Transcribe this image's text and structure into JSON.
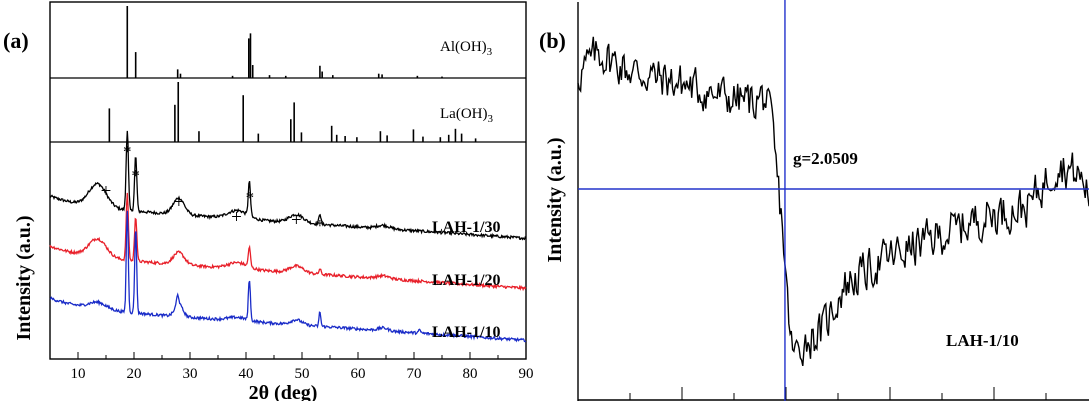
{
  "chart_data": [
    {
      "panel": "(a)",
      "type": "line",
      "xlabel": "2θ (deg)",
      "ylabel": "Intensity (a.u.)",
      "xlim": [
        5,
        90
      ],
      "xticks": [
        10,
        20,
        30,
        40,
        50,
        60,
        70,
        80,
        90
      ],
      "reference_patterns": [
        {
          "name": "Al(OH)",
          "subscript": "3",
          "peaks": [
            {
              "x": 18.8,
              "h": 1.0
            },
            {
              "x": 20.3,
              "h": 0.36
            },
            {
              "x": 27.8,
              "h": 0.12
            },
            {
              "x": 28.3,
              "h": 0.06
            },
            {
              "x": 37.6,
              "h": 0.03
            },
            {
              "x": 40.5,
              "h": 0.55
            },
            {
              "x": 40.8,
              "h": 0.62
            },
            {
              "x": 41.2,
              "h": 0.18
            },
            {
              "x": 44.2,
              "h": 0.04
            },
            {
              "x": 47.1,
              "h": 0.03
            },
            {
              "x": 53.2,
              "h": 0.17
            },
            {
              "x": 53.6,
              "h": 0.09
            },
            {
              "x": 55.5,
              "h": 0.04
            },
            {
              "x": 63.7,
              "h": 0.06
            },
            {
              "x": 64.3,
              "h": 0.05
            },
            {
              "x": 70.6,
              "h": 0.03
            },
            {
              "x": 75.0,
              "h": 0.02
            }
          ]
        },
        {
          "name": "La(OH)",
          "subscript": "3",
          "peaks": [
            {
              "x": 15.6,
              "h": 0.56
            },
            {
              "x": 27.3,
              "h": 0.62
            },
            {
              "x": 27.9,
              "h": 1.0
            },
            {
              "x": 31.6,
              "h": 0.18
            },
            {
              "x": 39.5,
              "h": 0.78
            },
            {
              "x": 42.2,
              "h": 0.14
            },
            {
              "x": 48.0,
              "h": 0.38
            },
            {
              "x": 48.6,
              "h": 0.66
            },
            {
              "x": 49.9,
              "h": 0.16
            },
            {
              "x": 55.3,
              "h": 0.27
            },
            {
              "x": 56.2,
              "h": 0.12
            },
            {
              "x": 57.7,
              "h": 0.1
            },
            {
              "x": 59.8,
              "h": 0.08
            },
            {
              "x": 64.0,
              "h": 0.18
            },
            {
              "x": 65.2,
              "h": 0.11
            },
            {
              "x": 69.9,
              "h": 0.21
            },
            {
              "x": 71.6,
              "h": 0.09
            },
            {
              "x": 74.7,
              "h": 0.08
            },
            {
              "x": 76.2,
              "h": 0.12
            },
            {
              "x": 77.4,
              "h": 0.22
            },
            {
              "x": 78.5,
              "h": 0.14
            },
            {
              "x": 81.0,
              "h": 0.06
            }
          ]
        }
      ],
      "series": [
        {
          "name": "LAH-1/30",
          "color": "#000000",
          "baseline": 0.0,
          "amplitude": 1.0,
          "humps": [
            {
              "x": 13.5,
              "h": 0.42,
              "w": 2.2
            },
            {
              "x": 28.0,
              "h": 0.3,
              "w": 1.4
            },
            {
              "x": 38.5,
              "h": 0.15,
              "w": 2.4
            },
            {
              "x": 49.0,
              "h": 0.15,
              "w": 1.8
            },
            {
              "x": 64.5,
              "h": 0.06,
              "w": 1.6
            }
          ],
          "peaks": [
            {
              "x": 18.8,
              "h": 1.45,
              "w": 0.28
            },
            {
              "x": 20.3,
              "h": 1.0,
              "w": 0.28
            },
            {
              "x": 40.6,
              "h": 0.62,
              "w": 0.28
            },
            {
              "x": 53.2,
              "h": 0.2,
              "w": 0.25
            }
          ]
        },
        {
          "name": "LAH-1/20",
          "color": "#e8202a",
          "baseline": 0.0,
          "amplitude": 1.0,
          "humps": [
            {
              "x": 13.5,
              "h": 0.33,
              "w": 2.2
            },
            {
              "x": 28.0,
              "h": 0.22,
              "w": 1.4
            },
            {
              "x": 38.5,
              "h": 0.11,
              "w": 2.4
            },
            {
              "x": 49.0,
              "h": 0.12,
              "w": 1.8
            },
            {
              "x": 64.5,
              "h": 0.05,
              "w": 1.6
            }
          ],
          "peaks": [
            {
              "x": 18.8,
              "h": 1.2,
              "w": 0.28
            },
            {
              "x": 20.3,
              "h": 0.82,
              "w": 0.28
            },
            {
              "x": 40.6,
              "h": 0.35,
              "w": 0.28
            },
            {
              "x": 53.2,
              "h": 0.1,
              "w": 0.25
            }
          ]
        },
        {
          "name": "LAH-1/10",
          "color": "#1a2cc8",
          "baseline": 0.0,
          "amplitude": 1.0,
          "humps": [
            {
              "x": 13.5,
              "h": 0.12,
              "w": 2.2
            },
            {
              "x": 28.0,
              "h": 0.22,
              "w": 1.0
            },
            {
              "x": 38.5,
              "h": 0.06,
              "w": 2.4
            },
            {
              "x": 49.0,
              "h": 0.09,
              "w": 1.4
            },
            {
              "x": 64.5,
              "h": 0.05,
              "w": 1.2
            }
          ],
          "peaks": [
            {
              "x": 18.8,
              "h": 1.85,
              "w": 0.25
            },
            {
              "x": 20.3,
              "h": 1.55,
              "w": 0.25
            },
            {
              "x": 27.8,
              "h": 0.18,
              "w": 0.3
            },
            {
              "x": 40.6,
              "h": 0.75,
              "w": 0.25
            },
            {
              "x": 53.2,
              "h": 0.27,
              "w": 0.22
            },
            {
              "x": 71.0,
              "h": 0.05,
              "w": 0.3
            }
          ]
        }
      ],
      "annotations": [
        {
          "text": "*",
          "x": 18.8
        },
        {
          "text": "*",
          "x": 20.3
        },
        {
          "text": "*",
          "x": 40.7
        },
        {
          "text": "*",
          "x": 53.2
        },
        {
          "text": "+",
          "x": 15.0
        },
        {
          "text": "+",
          "x": 28.0
        },
        {
          "text": "+",
          "x": 38.3
        },
        {
          "text": "+",
          "x": 49.0
        }
      ]
    },
    {
      "panel": "(b)",
      "type": "line",
      "ylabel": "Intensity (a.u.)",
      "series_label": "LAH-1/10",
      "annotation": "g=2.0509",
      "color": "#000000",
      "crosshair_color": "#2233cc",
      "crosshair_x": 0.405,
      "zero_level": 0.0,
      "profile": [
        {
          "t": 0.0,
          "v": 1.3
        },
        {
          "t": 0.04,
          "v": 1.55
        },
        {
          "t": 0.1,
          "v": 1.35
        },
        {
          "t": 0.2,
          "v": 1.2
        },
        {
          "t": 0.28,
          "v": 1.05
        },
        {
          "t": 0.34,
          "v": 1.0
        },
        {
          "t": 0.365,
          "v": 1.05
        },
        {
          "t": 0.38,
          "v": 0.7
        },
        {
          "t": 0.39,
          "v": 0.1
        },
        {
          "t": 0.4,
          "v": -0.4
        },
        {
          "t": 0.41,
          "v": -1.3
        },
        {
          "t": 0.42,
          "v": -1.9
        },
        {
          "t": 0.44,
          "v": -1.75
        },
        {
          "t": 0.48,
          "v": -1.6
        },
        {
          "t": 0.52,
          "v": -1.1
        },
        {
          "t": 0.6,
          "v": -0.8
        },
        {
          "t": 0.7,
          "v": -0.55
        },
        {
          "t": 0.8,
          "v": -0.3
        },
        {
          "t": 0.88,
          "v": -0.2
        },
        {
          "t": 0.94,
          "v": 0.3
        },
        {
          "t": 0.98,
          "v": 0.15
        },
        {
          "t": 1.0,
          "v": -0.05
        }
      ]
    }
  ]
}
